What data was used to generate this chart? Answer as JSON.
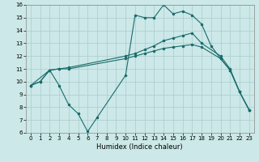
{
  "xlabel": "Humidex (Indice chaleur)",
  "bg_color": "#cce8e8",
  "grid_color": "#aacccc",
  "line_color": "#1a6b6b",
  "xlim": [
    -0.5,
    23.5
  ],
  "ylim": [
    6,
    16
  ],
  "xticks": [
    0,
    1,
    2,
    3,
    4,
    5,
    6,
    7,
    8,
    9,
    10,
    11,
    12,
    13,
    14,
    15,
    16,
    17,
    18,
    19,
    20,
    21,
    22,
    23
  ],
  "yticks": [
    6,
    7,
    8,
    9,
    10,
    11,
    12,
    13,
    14,
    15,
    16
  ],
  "series": [
    {
      "x": [
        0,
        1,
        2,
        3,
        4,
        10,
        11,
        12,
        13,
        14,
        15,
        16,
        17,
        18,
        20,
        21,
        22,
        23
      ],
      "y": [
        9.7,
        10.0,
        10.9,
        11.0,
        11.0,
        11.8,
        12.0,
        12.2,
        12.4,
        12.6,
        12.7,
        12.8,
        12.9,
        12.7,
        11.8,
        10.9,
        9.2,
        7.8
      ],
      "linestyle": "solid"
    },
    {
      "x": [
        0,
        1,
        2,
        3,
        4,
        10,
        11,
        12,
        13,
        14,
        15,
        16,
        17,
        18,
        20,
        21,
        22,
        23
      ],
      "y": [
        9.7,
        10.0,
        10.9,
        11.0,
        11.1,
        12.0,
        12.2,
        12.5,
        12.8,
        13.2,
        13.4,
        13.6,
        13.8,
        13.0,
        12.0,
        11.0,
        9.2,
        7.8
      ],
      "linestyle": "solid"
    },
    {
      "x": [
        0,
        2,
        3,
        4,
        5,
        6,
        7,
        10,
        11,
        12,
        13,
        14,
        15,
        16,
        17,
        18,
        19,
        20,
        21,
        22,
        23
      ],
      "y": [
        9.7,
        10.9,
        9.7,
        8.2,
        7.5,
        6.1,
        7.2,
        10.5,
        15.2,
        15.0,
        15.0,
        16.0,
        15.3,
        15.5,
        15.2,
        14.5,
        12.8,
        11.8,
        10.9,
        9.2,
        7.8
      ],
      "linestyle": "solid"
    }
  ]
}
